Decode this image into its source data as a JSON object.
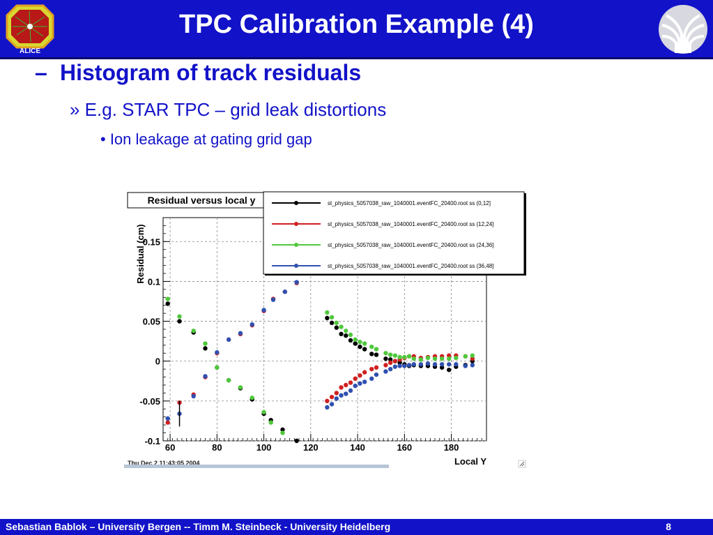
{
  "slide": {
    "title": "TPC Calibration Example (4)",
    "bullet1_marker": "–",
    "bullet1": "Histogram of track residuals",
    "bullet2": "» E.g. STAR TPC – grid leak distortions",
    "bullet3": "• Ion leakage at gating grid gap",
    "footer": "Sebastian Bablok – University Bergen  --  Timm M. Steinbeck - University Heidelberg",
    "page_number": "8",
    "logo_left_text": "ALICE",
    "colors": {
      "header": "#1212c8",
      "text": "#1212c8",
      "footer": "#1212c8"
    }
  },
  "chart_data": {
    "type": "scatter",
    "title": "Residual versus local y",
    "xlabel": "Local Y",
    "ylabel": "Residual (cm)",
    "xlim": [
      57,
      195
    ],
    "ylim": [
      -0.1,
      0.18
    ],
    "x_ticks": [
      60,
      80,
      100,
      120,
      140,
      160,
      180
    ],
    "x_tick_labels": [
      "60",
      "80",
      "100",
      "120",
      "140",
      "160",
      "180"
    ],
    "y_ticks": [
      -0.1,
      -0.05,
      0,
      0.05,
      0.1,
      0.15
    ],
    "y_tick_labels": [
      "-0.1",
      "-0.05",
      "0",
      "0.05",
      "0.1",
      "0.15"
    ],
    "grid": true,
    "legend_position": "top-right",
    "timestamp": "Thu Dec  2 11:43:05 2004",
    "series": [
      {
        "name": "st_physics_5057038_raw_1040001.eventFC_20400.root ss (0,12]",
        "color": "#000000",
        "points": [
          [
            59,
            0.072
          ],
          [
            64,
            0.05
          ],
          [
            70,
            0.036
          ],
          [
            75,
            0.016
          ],
          [
            80,
            -0.008
          ],
          [
            85,
            -0.024
          ],
          [
            90,
            -0.034
          ],
          [
            95,
            -0.048
          ],
          [
            100,
            -0.066
          ],
          [
            103,
            -0.074
          ],
          [
            108,
            -0.086
          ],
          [
            114,
            -0.1
          ],
          [
            127,
            0.054
          ],
          [
            129,
            0.048
          ],
          [
            131,
            0.042
          ],
          [
            133,
            0.034
          ],
          [
            135,
            0.032
          ],
          [
            137,
            0.026
          ],
          [
            139,
            0.022
          ],
          [
            141,
            0.018
          ],
          [
            143,
            0.015
          ],
          [
            146,
            0.009
          ],
          [
            148,
            0.008
          ],
          [
            152,
            0.003
          ],
          [
            154,
            0.002
          ],
          [
            156,
            0.0
          ],
          [
            158,
            -0.002
          ],
          [
            160,
            -0.004
          ],
          [
            162,
            -0.006
          ],
          [
            164,
            -0.005
          ],
          [
            167,
            -0.006
          ],
          [
            170,
            -0.006
          ],
          [
            173,
            -0.007
          ],
          [
            176,
            -0.008
          ],
          [
            179,
            -0.011
          ],
          [
            182,
            -0.007
          ],
          [
            186,
            -0.005
          ],
          [
            189,
            0.0
          ]
        ]
      },
      {
        "name": "st_physics_5057038_raw_1040001.eventFC_20400.root ss (12,24]",
        "color": "#d02020",
        "points": [
          [
            59,
            -0.077
          ],
          [
            64,
            -0.052
          ],
          [
            70,
            -0.042
          ],
          [
            75,
            -0.02
          ],
          [
            80,
            0.01
          ],
          [
            85,
            0.027
          ],
          [
            90,
            0.034
          ],
          [
            95,
            0.045
          ],
          [
            100,
            0.063
          ],
          [
            104,
            0.078
          ],
          [
            109,
            0.087
          ],
          [
            114,
            0.098
          ],
          [
            127,
            -0.05
          ],
          [
            129,
            -0.045
          ],
          [
            131,
            -0.04
          ],
          [
            133,
            -0.033
          ],
          [
            135,
            -0.03
          ],
          [
            137,
            -0.027
          ],
          [
            139,
            -0.022
          ],
          [
            141,
            -0.018
          ],
          [
            143,
            -0.014
          ],
          [
            146,
            -0.01
          ],
          [
            148,
            -0.008
          ],
          [
            152,
            -0.005
          ],
          [
            154,
            -0.002
          ],
          [
            156,
            0.0
          ],
          [
            158,
            0.002
          ],
          [
            160,
            0.004
          ],
          [
            162,
            0.006
          ],
          [
            164,
            0.006
          ],
          [
            167,
            0.004
          ],
          [
            170,
            0.005
          ],
          [
            173,
            0.006
          ],
          [
            176,
            0.006
          ],
          [
            179,
            0.007
          ],
          [
            182,
            0.007
          ],
          [
            186,
            0.006
          ],
          [
            189,
            0.003
          ]
        ]
      },
      {
        "name": "st_physics_5057038_raw_1040001.eventFC_20400.root ss (24,36]",
        "color": "#50c83c",
        "points": [
          [
            59,
            0.078
          ],
          [
            64,
            0.056
          ],
          [
            70,
            0.038
          ],
          [
            75,
            0.022
          ],
          [
            80,
            -0.008
          ],
          [
            85,
            -0.024
          ],
          [
            90,
            -0.033
          ],
          [
            95,
            -0.046
          ],
          [
            100,
            -0.064
          ],
          [
            103,
            -0.077
          ],
          [
            108,
            -0.09
          ],
          [
            127,
            0.061
          ],
          [
            129,
            0.055
          ],
          [
            131,
            0.048
          ],
          [
            133,
            0.043
          ],
          [
            135,
            0.038
          ],
          [
            137,
            0.033
          ],
          [
            139,
            0.027
          ],
          [
            141,
            0.024
          ],
          [
            143,
            0.022
          ],
          [
            146,
            0.018
          ],
          [
            148,
            0.015
          ],
          [
            152,
            0.01
          ],
          [
            154,
            0.008
          ],
          [
            156,
            0.007
          ],
          [
            158,
            0.005
          ],
          [
            160,
            0.005
          ],
          [
            162,
            0.006
          ],
          [
            164,
            0.003
          ],
          [
            167,
            0.002
          ],
          [
            170,
            0.004
          ],
          [
            173,
            0.003
          ],
          [
            176,
            0.003
          ],
          [
            179,
            0.003
          ],
          [
            182,
            0.004
          ],
          [
            186,
            0.006
          ],
          [
            189,
            0.007
          ]
        ]
      },
      {
        "name": "st_physics_5057038_raw_1040001.eventFC_20400.root ss (36,48]",
        "color": "#3050b0",
        "points": [
          [
            59,
            -0.072
          ],
          [
            64,
            -0.066
          ],
          [
            70,
            -0.044
          ],
          [
            75,
            -0.019
          ],
          [
            80,
            0.011
          ],
          [
            85,
            0.027
          ],
          [
            90,
            0.035
          ],
          [
            95,
            0.046
          ],
          [
            100,
            0.064
          ],
          [
            104,
            0.077
          ],
          [
            109,
            0.087
          ],
          [
            114,
            0.099
          ],
          [
            127,
            -0.058
          ],
          [
            129,
            -0.054
          ],
          [
            131,
            -0.047
          ],
          [
            133,
            -0.043
          ],
          [
            135,
            -0.041
          ],
          [
            137,
            -0.037
          ],
          [
            139,
            -0.031
          ],
          [
            141,
            -0.028
          ],
          [
            143,
            -0.026
          ],
          [
            146,
            -0.022
          ],
          [
            148,
            -0.017
          ],
          [
            152,
            -0.013
          ],
          [
            154,
            -0.01
          ],
          [
            156,
            -0.007
          ],
          [
            158,
            -0.006
          ],
          [
            160,
            -0.006
          ],
          [
            162,
            -0.005
          ],
          [
            164,
            -0.004
          ],
          [
            167,
            -0.004
          ],
          [
            170,
            -0.003
          ],
          [
            173,
            -0.004
          ],
          [
            176,
            -0.004
          ],
          [
            179,
            -0.004
          ],
          [
            182,
            -0.004
          ],
          [
            186,
            -0.006
          ],
          [
            189,
            -0.005
          ]
        ]
      }
    ]
  }
}
